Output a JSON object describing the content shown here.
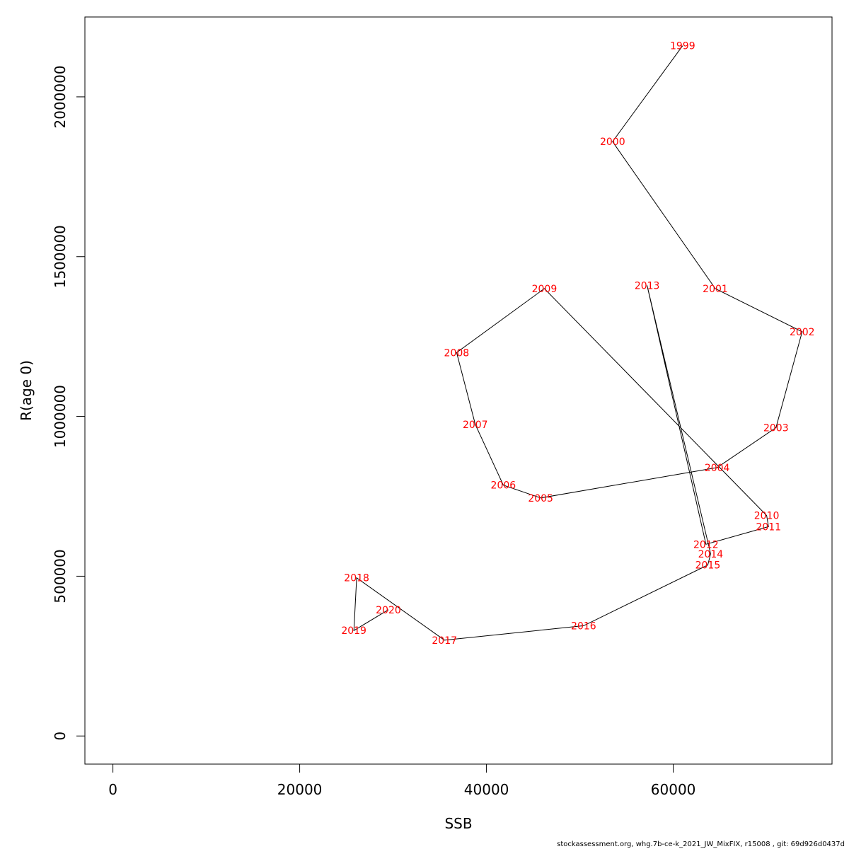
{
  "chart_data": {
    "type": "line",
    "xlabel": "SSB",
    "ylabel": "R(age 0)",
    "xlim": [
      -3000,
      77000
    ],
    "ylim": [
      -88000,
      2250000
    ],
    "x_ticks": [
      0,
      20000,
      40000,
      60000
    ],
    "x_tick_labels": [
      "0",
      "20000",
      "40000",
      "60000"
    ],
    "y_ticks": [
      0,
      500000,
      1000000,
      1500000,
      2000000
    ],
    "y_tick_labels": [
      "0",
      "500000",
      "1000000",
      "1500000",
      "2000000"
    ],
    "grid": false,
    "line_color": "#000000",
    "label_color": "#ff0000",
    "points": [
      {
        "year": "1999",
        "ssb": 61000,
        "r": 2160000
      },
      {
        "year": "2000",
        "ssb": 53500,
        "r": 1860000
      },
      {
        "year": "2001",
        "ssb": 64500,
        "r": 1400000
      },
      {
        "year": "2002",
        "ssb": 73800,
        "r": 1265000
      },
      {
        "year": "2003",
        "ssb": 71000,
        "r": 965000
      },
      {
        "year": "2004",
        "ssb": 64700,
        "r": 840000
      },
      {
        "year": "2005",
        "ssb": 45800,
        "r": 745000
      },
      {
        "year": "2006",
        "ssb": 41800,
        "r": 785000
      },
      {
        "year": "2007",
        "ssb": 38800,
        "r": 975000
      },
      {
        "year": "2008",
        "ssb": 36800,
        "r": 1200000
      },
      {
        "year": "2009",
        "ssb": 46200,
        "r": 1400000
      },
      {
        "year": "2010",
        "ssb": 70000,
        "r": 690000
      },
      {
        "year": "2011",
        "ssb": 70200,
        "r": 655000
      },
      {
        "year": "2012",
        "ssb": 63500,
        "r": 600000
      },
      {
        "year": "2013",
        "ssb": 57200,
        "r": 1410000
      },
      {
        "year": "2014",
        "ssb": 64000,
        "r": 570000
      },
      {
        "year": "2015",
        "ssb": 63700,
        "r": 535000
      },
      {
        "year": "2016",
        "ssb": 50400,
        "r": 345000
      },
      {
        "year": "2017",
        "ssb": 35500,
        "r": 300000
      },
      {
        "year": "2018",
        "ssb": 26100,
        "r": 495000
      },
      {
        "year": "2019",
        "ssb": 25800,
        "r": 330000
      },
      {
        "year": "2020",
        "ssb": 29500,
        "r": 395000
      }
    ]
  },
  "footer": "stockassessment.org, whg.7b-ce-k_2021_JW_MixFIX, r15008 , git: 69d926d0437d"
}
